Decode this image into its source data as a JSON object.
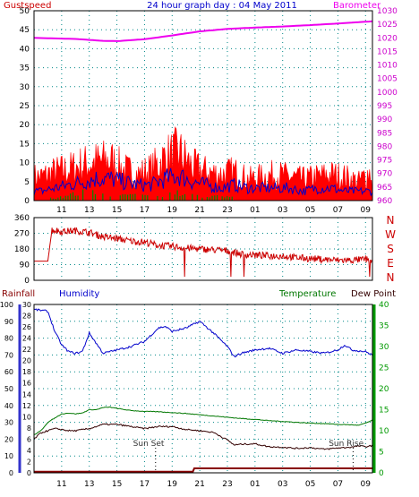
{
  "title": "24 hour graph day : 04 May 2011",
  "colors": {
    "gust": "#ff0000",
    "wind": "#0000cc",
    "calm": "#008800",
    "baro": "#ee00ee",
    "dir": "#cc0000",
    "humidity": "#0000cc",
    "temperature": "#007700",
    "dewpoint": "#330000",
    "rain": "#880000",
    "grid": "#008888",
    "left_axis": "#3333cc",
    "right_axis": "#009900"
  },
  "chart_data": [
    {
      "type": "area",
      "panel": "wind-baro",
      "title": "24 hour graph day : 04 May 2011",
      "left_label": "Gustspeed",
      "right_label": "Barometer",
      "ylim": [
        0,
        50
      ],
      "yticks": [
        "0",
        "5",
        "10",
        "15",
        "20",
        "25",
        "30",
        "35",
        "40",
        "45",
        "50"
      ],
      "y2lim": [
        960,
        1030
      ],
      "y2ticks": [
        "960",
        "965",
        "970",
        "975",
        "980",
        "985",
        "990",
        "995",
        "1000",
        "1005",
        "1010",
        "1015",
        "1020",
        "1025",
        "1030"
      ],
      "x_ticks": [
        "11",
        "13",
        "15",
        "17",
        "19",
        "21",
        "23",
        "01",
        "03",
        "05",
        "07",
        "09"
      ],
      "series": [
        {
          "key": "gust",
          "x": [
            9.5,
            10.5,
            11.5,
            12.5,
            13.5,
            14.5,
            15.5,
            16.5,
            17.5,
            18.5,
            19.5,
            20.5,
            21.5,
            22.5,
            23.5,
            24.5,
            25.5,
            26.5,
            27.5,
            28.5,
            29.5,
            30.5,
            31.5,
            32.5,
            33.5
          ],
          "values": [
            10,
            12,
            13,
            15,
            16,
            17,
            13,
            11,
            13,
            18,
            20,
            14,
            12,
            11,
            12,
            9,
            10,
            11,
            10,
            9,
            10,
            11,
            10,
            8,
            13
          ]
        },
        {
          "key": "wind",
          "x": [
            9.5,
            10.5,
            11.5,
            12.5,
            13.5,
            14.5,
            15.5,
            16.5,
            17.5,
            18.5,
            19.5,
            20.5,
            21.5,
            22.5,
            23.5,
            24.5,
            25.5,
            26.5,
            27.5,
            28.5,
            29.5,
            30.5,
            31.5,
            32.5,
            33.5
          ],
          "values": [
            3,
            4,
            5,
            6,
            7,
            7,
            6,
            5,
            5,
            7,
            8,
            6,
            5,
            4,
            5,
            4,
            4,
            4,
            4,
            3,
            4,
            4,
            3,
            3,
            3
          ]
        },
        {
          "key": "calm",
          "x": [
            10.5,
            11.5,
            12.5,
            13.5,
            14.5,
            18.5,
            19.5,
            20.5,
            21.5,
            22.5,
            23.5
          ],
          "values": [
            1,
            2,
            3,
            3,
            2,
            2,
            3,
            2,
            1,
            2,
            1
          ]
        },
        {
          "key": "baro",
          "axis": "y2",
          "x": [
            9,
            12,
            14,
            15,
            17,
            19,
            21,
            23,
            25,
            27,
            29,
            31,
            33.5
          ],
          "values": [
            1020,
            1019.6,
            1018.9,
            1018.8,
            1019.5,
            1020.9,
            1022.4,
            1023.3,
            1023.8,
            1024.2,
            1024.7,
            1025.3,
            1026.1
          ]
        }
      ]
    },
    {
      "type": "line",
      "panel": "direction",
      "ylim": [
        0,
        360
      ],
      "yticks": [
        "0",
        "90",
        "180",
        "270",
        "360"
      ],
      "compass": [
        "N",
        "W",
        "S",
        "E",
        "N"
      ],
      "series": [
        {
          "key": "dir",
          "x": [
            9,
            10,
            10.3,
            11,
            12,
            13,
            14,
            15,
            16,
            17,
            18,
            19,
            20,
            21,
            22,
            23,
            24,
            25,
            26,
            27,
            28,
            29,
            30,
            31,
            32,
            33,
            33.5
          ],
          "values": [
            110,
            110,
            290,
            280,
            285,
            275,
            250,
            240,
            225,
            220,
            200,
            195,
            185,
            180,
            175,
            170,
            150,
            145,
            140,
            140,
            130,
            125,
            120,
            115,
            115,
            120,
            115
          ]
        }
      ]
    },
    {
      "type": "line",
      "panel": "temp-hum",
      "rain_label": "Rainfall",
      "humidity_label": "Humidity",
      "temp_label": "Temperature",
      "dew_label": "Dew Point",
      "rain_lim": [
        0,
        30
      ],
      "rain_ticks": [
        "0",
        "2",
        "4",
        "6",
        "8",
        "10",
        "12",
        "14",
        "16",
        "18",
        "20",
        "22",
        "24",
        "26",
        "28",
        "30"
      ],
      "hum_lim": [
        0,
        100
      ],
      "hum_ticks": [
        "0",
        "10",
        "20",
        "30",
        "40",
        "50",
        "60",
        "70",
        "80",
        "90",
        "100"
      ],
      "temp_lim": [
        0,
        40
      ],
      "temp_ticks": [
        "0",
        "5",
        "10",
        "15",
        "20",
        "25",
        "30",
        "35",
        "40"
      ],
      "x_ticks": [
        "11",
        "13",
        "15",
        "17",
        "19",
        "21",
        "23",
        "01",
        "03",
        "05",
        "07",
        "09"
      ],
      "annotations": [
        {
          "text": "Sun Set",
          "x": 17.3
        },
        {
          "text": "Sun Rise",
          "x": 31.6
        }
      ],
      "series": [
        {
          "key": "humidity",
          "axis": "hum",
          "x": [
            9,
            10,
            10.5,
            11,
            11.5,
            12,
            12.5,
            13,
            13.5,
            14,
            15,
            16,
            17,
            18,
            18.5,
            19,
            20,
            21,
            22,
            23,
            23.5,
            24,
            25,
            26,
            27,
            28,
            29,
            30,
            31,
            31.5,
            32,
            33,
            33.5
          ],
          "values": [
            97,
            96,
            84,
            76,
            72,
            71,
            72,
            83,
            77,
            71,
            73,
            75,
            78,
            86,
            87,
            84,
            86,
            90,
            83,
            75,
            69,
            71,
            73,
            74,
            71,
            73,
            72,
            71,
            73,
            76,
            73,
            72,
            70
          ]
        },
        {
          "key": "temperature",
          "axis": "temp",
          "x": [
            9,
            9.5,
            10,
            10.5,
            11,
            11.5,
            12,
            12.5,
            13,
            13.5,
            14,
            14.5,
            15,
            16,
            17,
            18,
            19,
            20,
            21,
            22,
            23,
            24,
            25,
            26,
            27,
            28,
            29,
            30,
            31,
            32,
            32.5,
            33,
            33.5
          ],
          "values": [
            9,
            10,
            12,
            13,
            14,
            14.2,
            14,
            14.2,
            15,
            15,
            15.5,
            15.6,
            15.3,
            14.8,
            14.6,
            14.5,
            14.3,
            14.1,
            13.8,
            13.5,
            13.2,
            12.9,
            12.7,
            12.4,
            12.2,
            12,
            11.8,
            11.7,
            11.5,
            11.4,
            11.3,
            11.8,
            12.5
          ]
        },
        {
          "key": "dewpoint",
          "axis": "temp",
          "x": [
            9,
            9.5,
            10,
            10.5,
            11,
            11.5,
            12,
            13,
            14,
            15,
            16,
            17,
            18,
            19,
            20,
            21,
            22,
            23,
            23.5,
            24,
            25,
            26,
            27,
            28,
            29,
            30,
            31,
            32,
            32.5,
            33,
            33.5
          ],
          "values": [
            8,
            9.5,
            10,
            10.5,
            10.3,
            10,
            10,
            10.5,
            11.5,
            11.5,
            11,
            10.5,
            11,
            11,
            10.3,
            10,
            9.6,
            7.8,
            6.6,
            6.8,
            6.9,
            6.2,
            6.1,
            5.8,
            6,
            5.6,
            5.9,
            6.1,
            6.4,
            6.2,
            6.5
          ]
        },
        {
          "key": "rain",
          "axis": "rain",
          "x": [
            9,
            20.5,
            20.6,
            33.5
          ],
          "values": [
            0.2,
            0.2,
            0.8,
            0.8
          ]
        }
      ]
    }
  ]
}
